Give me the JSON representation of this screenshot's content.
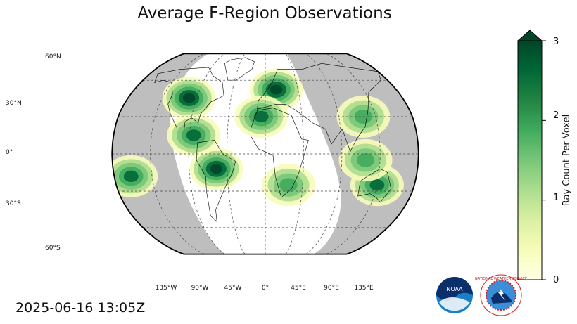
{
  "title": "Average F-Region Observations",
  "timestamp": "2025-06-16 13:05Z",
  "map": {
    "projection": "Robinson",
    "lat_labels": [
      "60°N",
      "30°N",
      "0°",
      "30°S",
      "60°S"
    ],
    "lon_labels": [
      "135°W",
      "90°W",
      "45°W",
      "0°",
      "45°E",
      "90°E",
      "135°E"
    ],
    "night_color": "#bebebe",
    "day_color": "#ffffff",
    "observation_regions": [
      {
        "name": "north-america",
        "lon": -100,
        "lat": 45,
        "intensity": 3
      },
      {
        "name": "south-america",
        "lon": -58,
        "lat": -12,
        "intensity": 3
      },
      {
        "name": "europe",
        "lon": 15,
        "lat": 52,
        "intensity": 3
      },
      {
        "name": "central-america",
        "lon": -85,
        "lat": 15,
        "intensity": 2.5
      },
      {
        "name": "north-africa",
        "lon": -5,
        "lat": 30,
        "intensity": 2.5
      },
      {
        "name": "southern-africa",
        "lon": 28,
        "lat": -25,
        "intensity": 2
      },
      {
        "name": "australia",
        "lon": 135,
        "lat": -25,
        "intensity": 2.5
      },
      {
        "name": "east-asia",
        "lon": 120,
        "lat": 30,
        "intensity": 2
      },
      {
        "name": "indonesia",
        "lon": 118,
        "lat": -5,
        "intensity": 2
      },
      {
        "name": "pacific-south",
        "lon": -160,
        "lat": -18,
        "intensity": 2.5
      }
    ]
  },
  "colorbar": {
    "label": "Ray Count Per Voxel",
    "ticks": [
      "0",
      "1",
      "2",
      "3"
    ],
    "min": 0,
    "max": 3,
    "colors": [
      "#ffffe5",
      "#f7fcb9",
      "#d9f0a3",
      "#addd8e",
      "#78c679",
      "#41ab5d",
      "#238443",
      "#006837",
      "#004529"
    ]
  },
  "logos": {
    "noaa": "NOAA",
    "nws": "NATIONAL WEATHER SERVICE"
  }
}
